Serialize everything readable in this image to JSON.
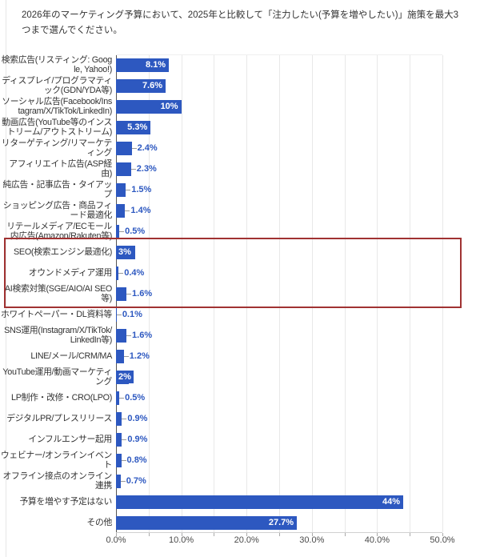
{
  "title": "2026年のマーケティング予算において、2025年と比較して「注力したい(予算を増やしたい)」施策を最大3つまで選んでください。",
  "chart_data": {
    "type": "bar",
    "orientation": "horizontal",
    "title": "2026年のマーケティング予算において、2025年と比較して「注力したい(予算を増やしたい)」施策を最大3つまで選んでください。",
    "categories": [
      "検索広告(リスティング: Google, Yahoo!)",
      "ディスプレイ/プログラマティック(GDN/YDA等)",
      "ソーシャル広告(Facebook/Instagram/X/TikTok/LinkedIn)",
      "動画広告(YouTube等のインストリーム/アウトストリーム)",
      "リターゲティング/リマーケティング",
      "アフィリエイト広告(ASP経由)",
      "純広告・記事広告・タイアップ",
      "ショッピング広告・商品フィード最適化",
      "リテールメディア/ECモール内広告(Amazon/Rakuten等)",
      "SEO(検索エンジン最適化)",
      "オウンドメディア運用",
      "AI検索対策(SGE/AIO/AI SEO等)",
      "ホワイトペーパー・DL資料等",
      "SNS運用(Instagram/X/TikTok/LinkedIn等)",
      "LINE/メール/CRM/MA",
      "YouTube運用/動画マーケティング",
      "LP制作・改修・CRO(LPO)",
      "デジタルPR/プレスリリース",
      "インフルエンサー起用",
      "ウェビナー/オンラインイベント",
      "オフライン接点のオンライン連携",
      "予算を増やす予定はない",
      "その他"
    ],
    "values": [
      8.1,
      7.6,
      10,
      5.3,
      2.4,
      2.3,
      1.5,
      1.4,
      0.5,
      3,
      0.4,
      1.6,
      0.1,
      1.6,
      1.2,
      2,
      0.5,
      0.9,
      0.9,
      0.8,
      0.7,
      44,
      27.7
    ],
    "value_labels": [
      "8.1%",
      "7.6%",
      "10%",
      "5.3%",
      "2.4%",
      "2.3%",
      "1.5%",
      "1.4%",
      "0.5%",
      "3%",
      "0.4%",
      "1.6%",
      "0.1%",
      "1.6%",
      "1.2%",
      "2%",
      "0.5%",
      "0.9%",
      "0.9%",
      "0.8%",
      "0.7%",
      "44%",
      "27.7%"
    ],
    "label_inside": [
      true,
      true,
      true,
      true,
      false,
      false,
      false,
      false,
      false,
      true,
      false,
      false,
      false,
      false,
      false,
      true,
      false,
      false,
      false,
      false,
      false,
      true,
      true
    ],
    "xlim": [
      0,
      50
    ],
    "x_tick_labels": [
      "0.0%",
      "10.0%",
      "20.0%",
      "30.0%",
      "40.0%",
      "50.0%"
    ],
    "grid": true,
    "grid_interval_pct": 5,
    "bar_color": "#2d58c0",
    "value_label_color_inside": "#ffffff",
    "value_label_color_outside": "#2d58c0",
    "highlight_box": {
      "rows": [
        "SEO(検索エンジン最適化)",
        "オウンドメディア運用",
        "AI検索対策(SGE/AIO/AI SEO等)"
      ],
      "color": "#a03232"
    }
  }
}
